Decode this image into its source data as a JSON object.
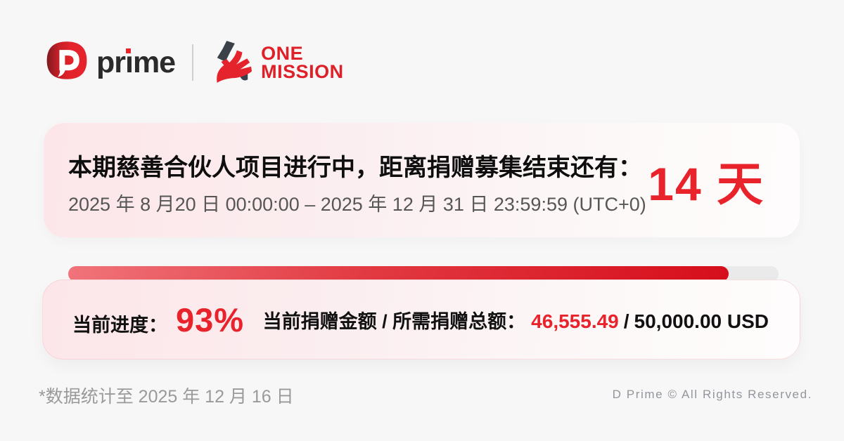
{
  "header": {
    "brand": {
      "word_pre": "pr",
      "word_i": "ı",
      "word_post": "me"
    },
    "partner": {
      "line1": "ONE",
      "line2": "MISSION"
    }
  },
  "countdown_card": {
    "title": "本期慈善合伙人项目进行中，距离捐赠募集结束还有：",
    "date_range": "2025 年 8 月20 日 00:00:00 – 2025 年 12 月 31 日 23:59:59 (UTC+0)",
    "days_remaining": "14 天"
  },
  "progress_card": {
    "progress_label": "当前进度：",
    "progress_value": "93%",
    "progress_percent": 93,
    "amount_label": "当前捐赠金额 / 所需捐赠总额：",
    "amount_current": "46,555.49",
    "amount_separator": "/",
    "amount_total": "50,000.00 USD"
  },
  "footer": {
    "note": "*数据统计至 2025 年 12 月 16 日",
    "copyright": "D Prime © All Rights Reserved."
  },
  "icons": {
    "dprime_logo": "d-prime-logo-icon",
    "one_mission_hand": "hand-holding-person-icon",
    "progress_marker": "triangle-up-marker"
  },
  "colors": {
    "background": "#f7f7f7",
    "brand_red": "#e4232c",
    "text_red": "#e8232b",
    "charcoal": "#2b2b2b",
    "dark_accent": "#3a4149",
    "card_pink": "#fce6e9",
    "track_gray": "#eaeaea",
    "bar_gradient_start": "#f0747a",
    "bar_gradient_end": "#d60e1b",
    "footer_gray": "#9a9a9a"
  }
}
